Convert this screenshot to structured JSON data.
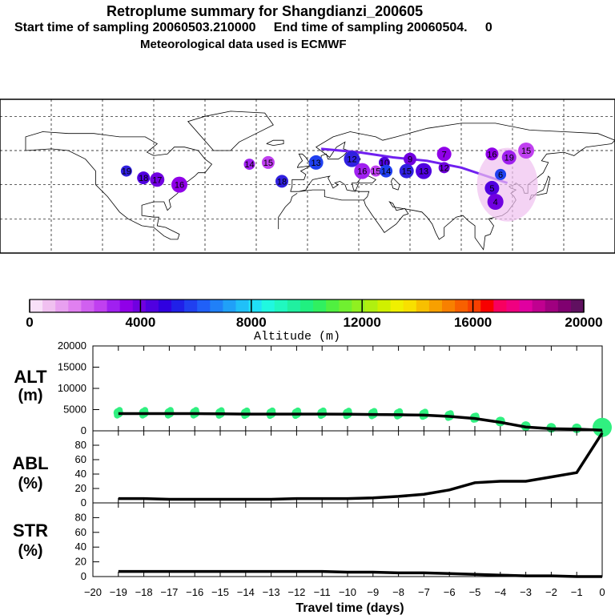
{
  "header": {
    "title": "Retroplume summary for Shangdianzi_200605",
    "sampling_line": "Start time of sampling 20060503.210000     End time of sampling 20060504.     0",
    "met_line": "Meteorological data used is ECMWF"
  },
  "colorbar": {
    "xlabel": "Altitude (m)",
    "ticks": [
      "0",
      "4000",
      "8000",
      "12000",
      "16000",
      "20000"
    ],
    "colors": [
      "#f8e0f8",
      "#f0c0f0",
      "#e8a0f0",
      "#e080f0",
      "#d060f0",
      "#c040f0",
      "#a020f0",
      "#9000e8",
      "#7000e0",
      "#5000e0",
      "#3000e0",
      "#2020e8",
      "#2040f0",
      "#2060f8",
      "#2080f8",
      "#20a0f8",
      "#20c0f8",
      "#20e0f8",
      "#20f8e0",
      "#20f8c0",
      "#20f0a0",
      "#20f080",
      "#30f060",
      "#50f040",
      "#70f030",
      "#90f020",
      "#b0f010",
      "#d0f000",
      "#f0f000",
      "#f8e000",
      "#f8c000",
      "#f8a000",
      "#f88000",
      "#f86000",
      "#f84000",
      "#f80000",
      "#f80060",
      "#f00080",
      "#e000a0",
      "#c00090",
      "#a00080",
      "#800070",
      "#601060"
    ]
  },
  "map": {
    "trajectory_color": "#7020f0",
    "labels": [
      {
        "n": "19",
        "lon": -106,
        "lat": 48
      },
      {
        "n": "18",
        "lon": -96,
        "lat": 44
      },
      {
        "n": "17",
        "lon": -88,
        "lat": 43
      },
      {
        "n": "16",
        "lon": -75,
        "lat": 40
      },
      {
        "n": "14",
        "lon": -34,
        "lat": 52
      },
      {
        "n": "15",
        "lon": -23,
        "lat": 53
      },
      {
        "n": "13",
        "lon": 5,
        "lat": 53
      },
      {
        "n": "12",
        "lon": 26,
        "lat": 55
      },
      {
        "n": "10",
        "lon": 45,
        "lat": 53
      },
      {
        "n": "9",
        "lon": 60,
        "lat": 55
      },
      {
        "n": "7",
        "lon": 80,
        "lat": 58
      },
      {
        "n": "16",
        "lon": 32,
        "lat": 48
      },
      {
        "n": "15",
        "lon": 40,
        "lat": 48
      },
      {
        "n": "14",
        "lon": 46,
        "lat": 48
      },
      {
        "n": "15",
        "lon": 58,
        "lat": 48
      },
      {
        "n": "13",
        "lon": 68,
        "lat": 48
      },
      {
        "n": "12",
        "lon": 80,
        "lat": 50
      },
      {
        "n": "16",
        "lon": 108,
        "lat": 58
      },
      {
        "n": "19",
        "lon": 118,
        "lat": 56
      },
      {
        "n": "15",
        "lon": 128,
        "lat": 60
      },
      {
        "n": "6",
        "lon": 113,
        "lat": 46
      },
      {
        "n": "18",
        "lon": -15,
        "lat": 42
      },
      {
        "n": "5",
        "lon": 108,
        "lat": 38
      },
      {
        "n": "4",
        "lon": 110,
        "lat": 30
      }
    ]
  },
  "chart_data": [
    {
      "type": "line",
      "title": "ALT (m)",
      "xlabel": "Travel time (days)",
      "ylabel": "ALT (m)",
      "ylim": [
        0,
        20000
      ],
      "yticks": [
        "0",
        "5000",
        "10000",
        "15000",
        "20000"
      ],
      "x": [
        -19,
        -18,
        -17,
        -16,
        -15,
        -14,
        -13,
        -12,
        -11,
        -10,
        -9,
        -8,
        -7,
        -6,
        -5,
        -4,
        -3,
        -2,
        -1,
        0
      ],
      "values": [
        4050,
        4050,
        4050,
        4050,
        4000,
        3950,
        3950,
        3950,
        3950,
        3900,
        3850,
        3800,
        3700,
        3400,
        2900,
        2000,
        900,
        500,
        400,
        150
      ]
    },
    {
      "type": "line",
      "title": "ABL (%)",
      "ylabel": "ABL (%)",
      "ylim": [
        0,
        100
      ],
      "yticks": [
        "0",
        "20",
        "40",
        "60",
        "80"
      ],
      "x": [
        -19,
        -18,
        -17,
        -16,
        -15,
        -14,
        -13,
        -12,
        -11,
        -10,
        -9,
        -8,
        -7,
        -6,
        -5,
        -4,
        -3,
        -2,
        -1,
        0
      ],
      "values": [
        6,
        6,
        5,
        5,
        5,
        5,
        5,
        6,
        6,
        6,
        7,
        9,
        12,
        18,
        28,
        30,
        30,
        36,
        42,
        97
      ]
    },
    {
      "type": "line",
      "title": "STR (%)",
      "ylabel": "STR (%)",
      "ylim": [
        0,
        100
      ],
      "yticks": [
        "0",
        "20",
        "40",
        "60",
        "80"
      ],
      "xticks": [
        "−20",
        "−19",
        "−18",
        "−17",
        "−16",
        "−15",
        "−14",
        "−13",
        "−12",
        "−11",
        "−10",
        "−9",
        "−8",
        "−7",
        "−6",
        "−5",
        "−4",
        "−3",
        "−2",
        "−1",
        "0"
      ],
      "x": [
        -19,
        -18,
        -17,
        -16,
        -15,
        -14,
        -13,
        -12,
        -11,
        -10,
        -9,
        -8,
        -7,
        -6,
        -5,
        -4,
        -3,
        -2,
        -1,
        0
      ],
      "values": [
        7,
        7,
        7,
        7,
        7,
        7,
        7,
        7,
        7,
        6,
        6,
        5,
        5,
        4,
        3,
        2,
        1,
        1,
        0,
        0
      ]
    }
  ],
  "panel_labels": {
    "alt": [
      "ALT",
      "(m)"
    ],
    "abl": [
      "ABL",
      "(%)"
    ],
    "str": [
      "STR",
      "(%)"
    ]
  }
}
